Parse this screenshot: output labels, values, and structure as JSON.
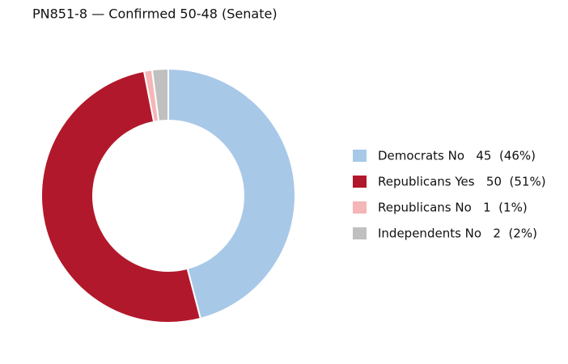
{
  "chart_data": {
    "type": "donut",
    "title": "PN851-8 — Confirmed 50-48 (Senate)",
    "categories": [
      "Democrats No   45  (46%)",
      "Republicans Yes   50  (51%)",
      "Republicans No   1  (1%)",
      "Independents No   2  (2%)"
    ],
    "values": [
      45,
      50,
      1,
      2
    ],
    "colors": [
      "#a8c8e8",
      "#b2182b",
      "#f4b6b6",
      "#c0c0c0"
    ],
    "legend": "right"
  }
}
